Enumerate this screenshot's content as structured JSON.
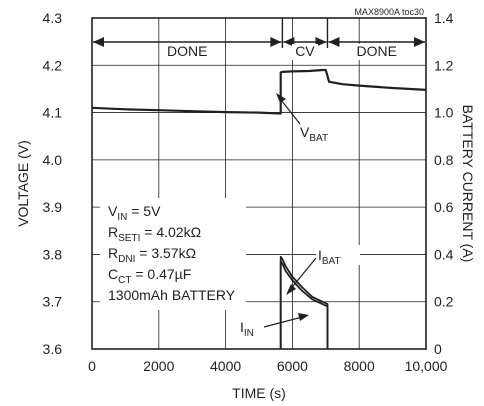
{
  "chart_data": {
    "type": "line",
    "title": "",
    "watermark": "MAX8900A toc30",
    "xlabel": "TIME (s)",
    "ylabel_left": "VOLTAGE (V)",
    "ylabel_right": "BATTERY CURRENT (A)",
    "xlim": [
      0,
      10000
    ],
    "ylim_left": [
      3.6,
      4.3
    ],
    "ylim_right": [
      0,
      1.4
    ],
    "x_ticks": [
      0,
      2000,
      4000,
      6000,
      8000,
      10000
    ],
    "x_tick_labels": [
      "0",
      "2000",
      "4000",
      "6000",
      "8000",
      "10,000"
    ],
    "y_left_ticks": [
      3.6,
      3.7,
      3.8,
      3.9,
      4.0,
      4.1,
      4.2,
      4.3
    ],
    "y_left_tick_labels": [
      "3.6",
      "3.7",
      "3.8",
      "3.9",
      "4.0",
      "4.1",
      "4.2",
      "4.3"
    ],
    "y_right_ticks": [
      0,
      0.2,
      0.4,
      0.6,
      0.8,
      1.0,
      1.2,
      1.4
    ],
    "y_right_tick_labels": [
      "0",
      "0.2",
      "0.4",
      "0.6",
      "0.8",
      "1.0",
      "1.2",
      "1.4"
    ],
    "grid": true,
    "regions": [
      {
        "label": "DONE",
        "x": [
          0,
          5700
        ]
      },
      {
        "label": "CV",
        "x": [
          5700,
          7050
        ]
      },
      {
        "label": "DONE",
        "x": [
          7050,
          10000
        ]
      }
    ],
    "series": [
      {
        "name": "VBAT",
        "axis": "left",
        "x": [
          0,
          1000,
          2000,
          3000,
          4000,
          5000,
          5650,
          5650,
          5700,
          6000,
          6500,
          6900,
          7000,
          7100,
          7500,
          8000,
          9000,
          10000
        ],
        "y": [
          4.11,
          4.107,
          4.105,
          4.103,
          4.101,
          4.1,
          4.098,
          4.185,
          4.186,
          4.187,
          4.188,
          4.19,
          4.19,
          4.165,
          4.16,
          4.157,
          4.152,
          4.148
        ]
      },
      {
        "name": "IBAT",
        "axis": "right",
        "x": [
          5650,
          5650,
          5700,
          5800,
          6000,
          6300,
          6600,
          6900,
          7050,
          7050
        ],
        "y": [
          0,
          0.37,
          0.36,
          0.33,
          0.29,
          0.245,
          0.21,
          0.19,
          0.18,
          0
        ]
      },
      {
        "name": "IIN",
        "axis": "right",
        "x": [
          5650,
          5650,
          5700,
          5800,
          6000,
          6300,
          6600,
          6900,
          7050,
          7050
        ],
        "y": [
          0,
          0.39,
          0.38,
          0.35,
          0.305,
          0.26,
          0.22,
          0.2,
          0.19,
          0
        ]
      }
    ],
    "annotations": {
      "vbat": {
        "main": "V",
        "sub": "BAT"
      },
      "ibat": {
        "main": "I",
        "sub": "BAT"
      },
      "iin": {
        "main": "I",
        "sub": "IN"
      },
      "conditions": [
        {
          "main": "V",
          "sub": "IN",
          "rest": " = 5V"
        },
        {
          "main": "R",
          "sub": "SETI",
          "rest": " = 4.02kΩ"
        },
        {
          "main": "R",
          "sub": "DNI",
          "rest": " = 3.57kΩ"
        },
        {
          "main": "C",
          "sub": "CT",
          "rest": " = 0.47µF"
        },
        {
          "main": "1300mAh BATTERY",
          "sub": "",
          "rest": ""
        }
      ]
    }
  }
}
